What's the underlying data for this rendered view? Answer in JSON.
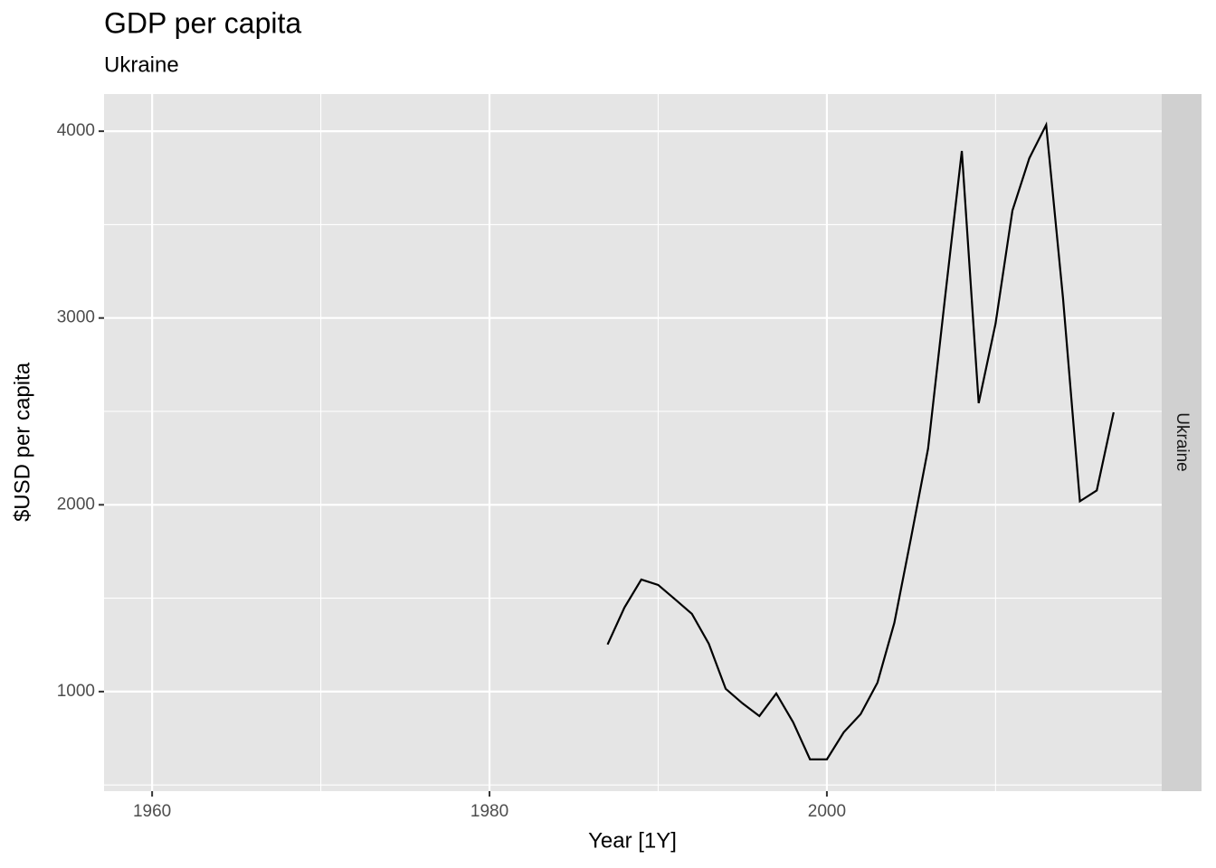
{
  "chart_data": {
    "type": "line",
    "title": "GDP per capita",
    "subtitle": "Ukraine",
    "x_label": "Year [1Y]",
    "y_label": "$USD per capita",
    "facet_label": "Ukraine",
    "x": [
      1987,
      1988,
      1989,
      1990,
      1991,
      1992,
      1993,
      1994,
      1995,
      1996,
      1997,
      1998,
      1999,
      2000,
      2001,
      2002,
      2003,
      2004,
      2005,
      2006,
      2007,
      2008,
      2009,
      2010,
      2011,
      2012,
      2013,
      2014,
      2015,
      2016,
      2017
    ],
    "series": [
      {
        "name": "Ukraine",
        "color": "#000000",
        "values": [
          1252,
          1450,
          1600,
          1571,
          1494,
          1416,
          1256,
          1015,
          937,
          869,
          990,
          836,
          637,
          637,
          782,
          879,
          1048,
          1368,
          1828,
          2301,
          3105,
          3894,
          2544,
          2970,
          3575,
          3855,
          4034,
          3105,
          2019,
          2077,
          2495
        ]
      }
    ],
    "xlim": [
      1957.15,
      2019.85
    ],
    "xticks": [
      1960,
      1980,
      2000
    ],
    "xminor_ticks": [
      1970,
      1990,
      2010
    ],
    "ylim": [
      467,
      4199
    ],
    "yticks": [
      1000,
      2000,
      3000,
      4000
    ],
    "yminor_ticks": [
      500,
      1500,
      2500,
      3500
    ],
    "grid": true
  }
}
